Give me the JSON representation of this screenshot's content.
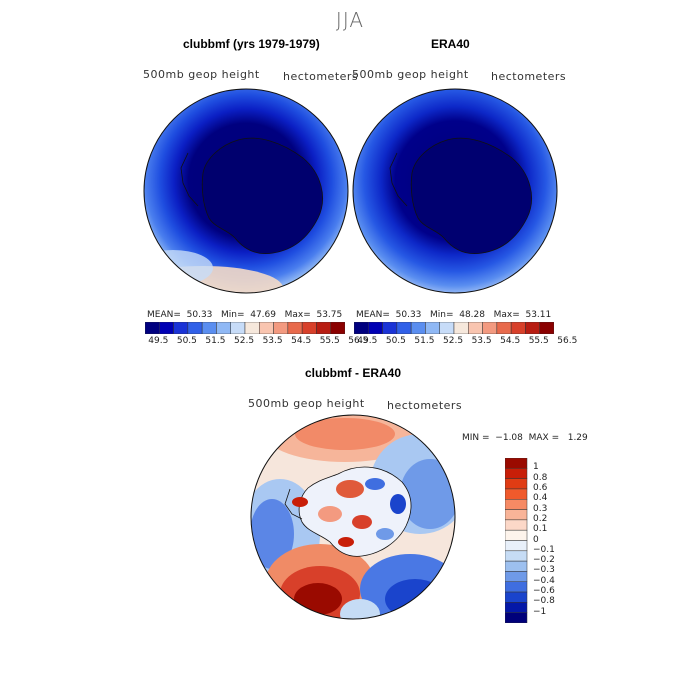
{
  "season": "JJA",
  "panels": [
    {
      "title": "clubbmf (yrs 1979-1979)",
      "field": "500mb geop height",
      "units": "hectometers",
      "stats": {
        "mean_label": "MEAN=",
        "mean": "50.33",
        "min_label": "Min=",
        "min": "47.69",
        "max_label": "Max=",
        "max": "53.75"
      }
    },
    {
      "title": "ERA40",
      "field": "500mb geop height",
      "units": "hectometers",
      "stats": {
        "mean_label": "MEAN=",
        "mean": "50.33",
        "min_label": "Min=",
        "min": "48.28",
        "max_label": "Max=",
        "max": "53.11"
      }
    }
  ],
  "colorbar": {
    "labels": [
      "49.5",
      "50.5",
      "51.5",
      "52.5",
      "53.5",
      "54.5",
      "55.5",
      "56.5"
    ],
    "colors": [
      "#00007f",
      "#0000b4",
      "#1a33d6",
      "#3060e8",
      "#5a8ef0",
      "#8fb8f5",
      "#c7dcf8",
      "#f6e8dc",
      "#f9c5b0",
      "#f39a80",
      "#e86a4c",
      "#d8402a",
      "#b81d12",
      "#8a0000"
    ]
  },
  "diff": {
    "title": "clubbmf - ERA40",
    "field": "500mb geop height",
    "units": "hectometers",
    "stats": {
      "min_label": "MIN =",
      "min": "−1.08",
      "max_label": "MAX =",
      "max": "1.29"
    },
    "colorbar": {
      "labels": [
        "1",
        "0.8",
        "0.6",
        "0.4",
        "0.3",
        "0.2",
        "0.1",
        "0",
        "−0.1",
        "−0.2",
        "−0.3",
        "−0.4",
        "−0.6",
        "−0.8",
        "−1"
      ],
      "colors": [
        "#9a0a00",
        "#c81e08",
        "#e03c14",
        "#f05a2c",
        "#f68a64",
        "#f9b498",
        "#fcd8c8",
        "#fdf4ec",
        "#e8f0fa",
        "#c6dcf5",
        "#9dc0ef",
        "#6f9ae8",
        "#3f6ee0",
        "#1a44cc",
        "#0418a8",
        "#00007a"
      ]
    }
  },
  "chart_data": [
    {
      "type": "heatmap",
      "title": "clubbmf (yrs 1979-1979)",
      "variable": "500mb geop height",
      "units": "hectometers",
      "mean": 50.33,
      "min": 47.69,
      "max": 53.75
    },
    {
      "type": "heatmap",
      "title": "ERA40",
      "variable": "500mb geop height",
      "units": "hectometers",
      "mean": 50.33,
      "min": 48.28,
      "max": 53.11
    },
    {
      "type": "heatmap",
      "title": "clubbmf - ERA40",
      "variable": "500mb geop height",
      "units": "hectometers",
      "min": -1.08,
      "max": 1.29
    }
  ]
}
